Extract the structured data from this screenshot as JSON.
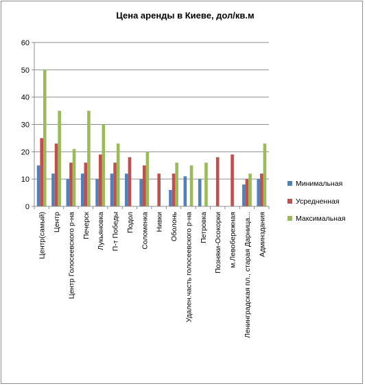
{
  "chart_data": {
    "type": "bar",
    "title": "Цена аренды в Киеве, дол/кв.м",
    "xlabel": "",
    "ylabel": "",
    "ylim": [
      0,
      60
    ],
    "yticks": [
      0,
      10,
      20,
      30,
      40,
      50,
      60
    ],
    "grid": true,
    "legend_position": "right",
    "categories": [
      "Центр(самый)",
      "Центр",
      "Центр Голосеевского р-на",
      "Печерск",
      "Лукьяновка",
      "П-т Победы",
      "Подол",
      "Соломенка",
      "Нивки",
      "Оболонь",
      "Удален.часть голосеевского р-на",
      "Петровка",
      "Позняки-Осокорки",
      "м.Левобережная",
      "Ленинградская пл., старая Дарница...",
      "Админздания"
    ],
    "series": [
      {
        "name": "Минимальная",
        "color": "#4f81bd",
        "values": [
          15,
          12,
          10,
          12,
          10,
          12,
          12,
          10,
          null,
          6,
          11,
          10,
          null,
          null,
          8,
          10
        ]
      },
      {
        "name": "Усредненная",
        "color": "#c0504d",
        "values": [
          25,
          23,
          16,
          16,
          19,
          16,
          18,
          15,
          12,
          12,
          null,
          null,
          18,
          19,
          10,
          12
        ]
      },
      {
        "name": "Максимальная",
        "color": "#9bbb59",
        "values": [
          50,
          35,
          21,
          35,
          30,
          23,
          null,
          20,
          null,
          16,
          15,
          16,
          null,
          null,
          12,
          23
        ]
      }
    ]
  }
}
